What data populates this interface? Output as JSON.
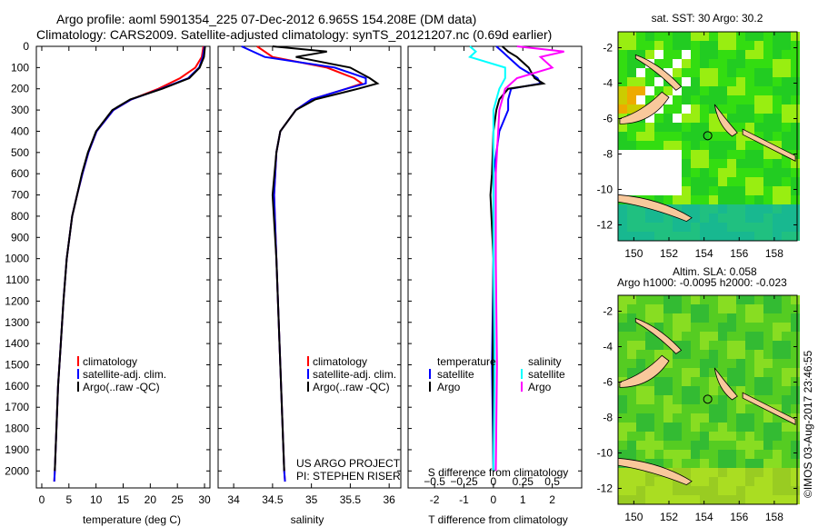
{
  "title_line1": "Argo profile: aoml 5901354_225 07-Dec-2012 6.965S 154.208E (DM data)",
  "title_line2": "Climatology: CARS2009. Satellite-adjusted climatology: synTS_20121207.nc (0.69d earlier)",
  "colors": {
    "climatology": "#ff0000",
    "satellite": "#0000ff",
    "argo": "#000000",
    "s_satellite": "#00ffff",
    "s_argo": "#ff00ff",
    "land": "#f9c89b",
    "ocean": "#22cc22"
  },
  "footer": {
    "project": "US ARGO PROJECT",
    "pi": "PI: STEPHEN RISER",
    "timestamp": "©IMOS 03-Aug-2017 23:46:55"
  },
  "legend": {
    "climatology": "climatology",
    "satellite_adj": "satellite-adj. clim.",
    "argo": "Argo(..raw -QC)"
  },
  "diff_legend": {
    "temperature": "temperature",
    "salinity": "salinity",
    "satellite": "satellite",
    "argo": "Argo"
  },
  "map1": {
    "title": "sat. SST: 30 Argo: 30.2",
    "xticks": [
      "150",
      "152",
      "154",
      "156",
      "158"
    ],
    "yticks": [
      "-2",
      "-4",
      "-6",
      "-8",
      "-10",
      "-12"
    ]
  },
  "map2": {
    "title1": "Altim. SLA: 0.058",
    "title2": "Argo h1000: -0.0095 h2000: -0.023",
    "xticks": [
      "150",
      "152",
      "154",
      "156",
      "158"
    ],
    "yticks": [
      "-2",
      "-4",
      "-6",
      "-8",
      "-10",
      "-12"
    ]
  },
  "profile_location": {
    "lat": -6.965,
    "lon": 154.208
  },
  "chart_data": [
    {
      "type": "line",
      "title": "",
      "xlabel": "temperature (deg C)",
      "ylabel": "depth",
      "xlim": [
        -1,
        31
      ],
      "ylim": [
        2080,
        0
      ],
      "xticks": [
        0,
        5,
        10,
        15,
        20,
        25,
        30
      ],
      "yticks": [
        0,
        100,
        200,
        300,
        400,
        500,
        600,
        700,
        800,
        900,
        1000,
        1100,
        1200,
        1300,
        1400,
        1500,
        1600,
        1700,
        1800,
        1900,
        2000
      ],
      "series": [
        {
          "name": "climatology",
          "depth": [
            0,
            50,
            100,
            150,
            200,
            250,
            300,
            400,
            500,
            600,
            700,
            800,
            1000,
            1200,
            1400,
            1600,
            1800,
            2000,
            2050
          ],
          "values": [
            29.8,
            29.5,
            28.3,
            25.5,
            21.5,
            16.5,
            13.2,
            10.1,
            8.6,
            7.5,
            6.5,
            5.6,
            4.6,
            4.0,
            3.5,
            3.0,
            2.7,
            2.4,
            2.3
          ]
        },
        {
          "name": "satellite-adj. clim.",
          "depth": [
            0,
            50,
            100,
            150,
            200,
            250,
            300,
            400,
            500,
            600,
            700,
            800,
            1000,
            1200,
            1400,
            1600,
            1800,
            2000,
            2050
          ],
          "values": [
            30.0,
            29.7,
            29.0,
            27.0,
            22.0,
            16.5,
            13.2,
            10.1,
            8.6,
            7.5,
            6.5,
            5.6,
            4.6,
            4.0,
            3.5,
            3.0,
            2.7,
            2.4,
            2.3
          ]
        },
        {
          "name": "Argo",
          "depth": [
            0,
            50,
            100,
            150,
            200,
            250,
            300,
            400,
            500,
            600,
            700,
            800,
            1000,
            1200,
            1400,
            1600,
            1800,
            2000
          ],
          "values": [
            30.1,
            29.9,
            29.1,
            27.2,
            22.2,
            16.3,
            13.0,
            10.0,
            8.5,
            7.4,
            6.5,
            5.6,
            4.6,
            4.0,
            3.5,
            3.0,
            2.7,
            2.4
          ]
        }
      ]
    },
    {
      "type": "line",
      "title": "",
      "xlabel": "salinity",
      "ylabel": "depth",
      "xlim": [
        33.8,
        36.15
      ],
      "ylim": [
        2080,
        0
      ],
      "xticks": [
        34,
        34.5,
        35,
        35.5,
        36
      ],
      "series": [
        {
          "name": "climatology",
          "depth": [
            0,
            50,
            100,
            150,
            175,
            200,
            250,
            300,
            400,
            500,
            700,
            1000,
            1500,
            2000,
            2050
          ],
          "values": [
            34.3,
            34.5,
            35.2,
            35.55,
            35.65,
            35.45,
            35.0,
            34.8,
            34.6,
            34.55,
            34.52,
            34.55,
            34.6,
            34.65,
            34.66
          ]
        },
        {
          "name": "satellite-adj. clim.",
          "depth": [
            0,
            50,
            100,
            150,
            175,
            200,
            250,
            300,
            400,
            500,
            700,
            1000,
            1500,
            2000,
            2050
          ],
          "values": [
            34.1,
            34.4,
            35.3,
            35.7,
            35.7,
            35.45,
            35.0,
            34.8,
            34.6,
            34.55,
            34.52,
            34.55,
            34.6,
            34.65,
            34.66
          ]
        },
        {
          "name": "Argo",
          "depth": [
            0,
            25,
            50,
            100,
            150,
            175,
            200,
            250,
            300,
            400,
            500,
            700,
            1000,
            1500,
            2000
          ],
          "values": [
            34.5,
            35.2,
            34.8,
            35.5,
            35.75,
            35.85,
            35.6,
            35.05,
            34.8,
            34.6,
            34.55,
            34.5,
            34.55,
            34.6,
            34.65
          ]
        }
      ]
    },
    {
      "type": "line",
      "title": "",
      "xlabel": "T difference from climatology",
      "x2label": "S difference from climatology",
      "ylabel": "depth",
      "xlim": [
        -2.9,
        3
      ],
      "x2lim": [
        -0.725,
        0.75
      ],
      "ylim": [
        2080,
        0
      ],
      "xticks": [
        -2,
        -1,
        0,
        1,
        2
      ],
      "x2ticks": [
        "-0.5",
        "-0.25",
        "0",
        "0.25",
        "0.5"
      ],
      "series": [
        {
          "name": "T satellite",
          "axis": "T",
          "depth": [
            0,
            25,
            50,
            100,
            150,
            175,
            200,
            250,
            300,
            400,
            600,
            1000,
            1500,
            2000
          ],
          "values": [
            0.1,
            0.3,
            0.5,
            0.9,
            1.5,
            1.6,
            0.6,
            0.5,
            0.5,
            0.2,
            0,
            0,
            -0.05,
            0
          ]
        },
        {
          "name": "T Argo",
          "axis": "T",
          "depth": [
            0,
            25,
            50,
            100,
            150,
            175,
            200,
            250,
            300,
            400,
            600,
            700,
            1000,
            1500,
            2000
          ],
          "values": [
            0.3,
            0.5,
            0.8,
            1.2,
            1.4,
            1.7,
            0.5,
            0.2,
            0.1,
            0,
            -0.05,
            -0.1,
            0,
            -0.02,
            0
          ]
        },
        {
          "name": "S satellite",
          "axis": "S",
          "depth": [
            0,
            25,
            50,
            100,
            150,
            200,
            300,
            600,
            1000,
            1500,
            2000
          ],
          "values": [
            -0.2,
            -0.15,
            -0.2,
            0.1,
            0.1,
            0.05,
            0,
            0,
            0,
            0.01,
            0
          ]
        },
        {
          "name": "S Argo",
          "axis": "S",
          "depth": [
            0,
            25,
            50,
            100,
            150,
            200,
            300,
            600,
            1000,
            1500,
            2000
          ],
          "values": [
            0.2,
            0.6,
            0.4,
            0.5,
            0.2,
            0.1,
            0.05,
            0.02,
            0.02,
            0.03,
            0.02
          ]
        }
      ]
    }
  ]
}
